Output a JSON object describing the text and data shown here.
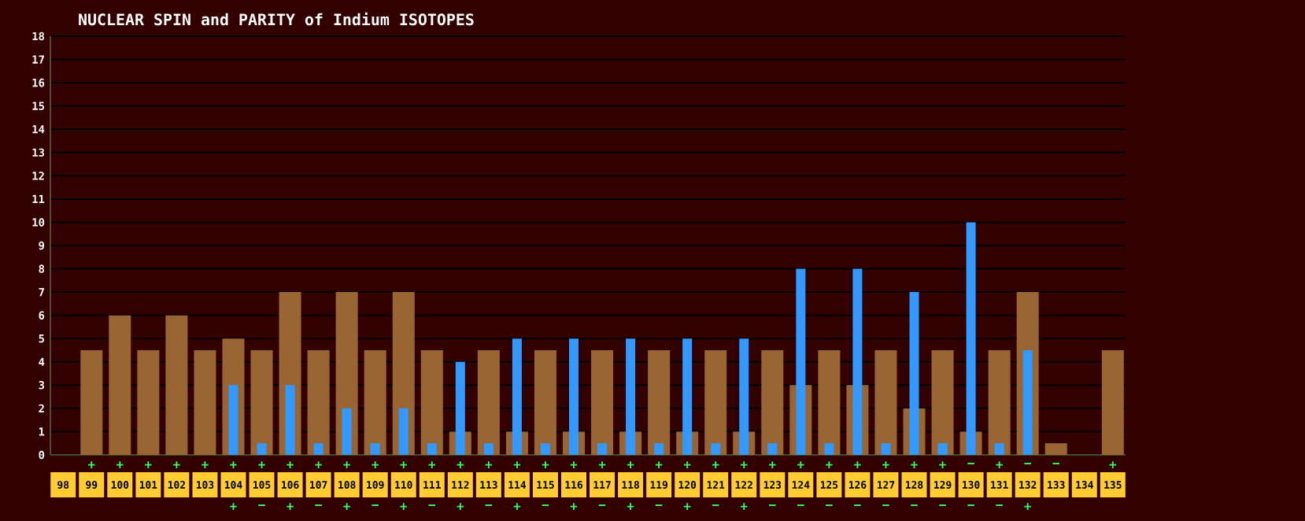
{
  "chart_data": {
    "type": "bar",
    "title": "NUCLEAR SPIN and PARITY of Indium ISOTOPES",
    "categories": [
      "98",
      "99",
      "100",
      "101",
      "102",
      "103",
      "104",
      "105",
      "106",
      "107",
      "108",
      "109",
      "110",
      "111",
      "112",
      "113",
      "114",
      "115",
      "116",
      "117",
      "118",
      "119",
      "120",
      "121",
      "122",
      "123",
      "124",
      "125",
      "126",
      "127",
      "128",
      "129",
      "130",
      "131",
      "132",
      "133",
      "134",
      "135"
    ],
    "series": [
      {
        "color": "#996633",
        "values": [
          null,
          4.5,
          6,
          4.5,
          6,
          4.5,
          5,
          4.5,
          7,
          4.5,
          7,
          4.5,
          7,
          4.5,
          1,
          4.5,
          1,
          4.5,
          1,
          4.5,
          1,
          4.5,
          1,
          4.5,
          1,
          4.5,
          3,
          4.5,
          3,
          4.5,
          2,
          4.5,
          1,
          4.5,
          7,
          0.5,
          null,
          4.5
        ],
        "value_labels": [
          null,
          "+",
          "+",
          "+",
          "+",
          "+",
          "+",
          "+",
          "+",
          "+",
          "+",
          "+",
          "+",
          "+",
          "+",
          "+",
          "+",
          "+",
          "+",
          "+",
          "+",
          "+",
          "+",
          "+",
          "+",
          "+",
          "+",
          "+",
          "+",
          "+",
          "+",
          "+",
          "−",
          "+",
          "−",
          "−",
          null,
          "+"
        ]
      },
      {
        "color": "#3399ff",
        "values": [
          null,
          null,
          null,
          null,
          null,
          null,
          3,
          0.5,
          3,
          0.5,
          2,
          0.5,
          2,
          0.5,
          4,
          0.5,
          5,
          0.5,
          5,
          0.5,
          5,
          0.5,
          5,
          0.5,
          5,
          0.5,
          8,
          0.5,
          8,
          0.5,
          7,
          0.5,
          10,
          0.5,
          4.5,
          null,
          null,
          null
        ],
        "value_labels": [
          null,
          null,
          null,
          null,
          null,
          null,
          "+",
          "−",
          "+",
          "−",
          "+",
          "−",
          "+",
          "−",
          "+",
          "−",
          "+",
          "−",
          "+",
          "−",
          "+",
          "−",
          "+",
          "−",
          "+",
          "−",
          "−",
          "−",
          "−",
          "−",
          "−",
          "−",
          "−",
          "−",
          "+",
          null,
          null,
          null
        ]
      }
    ],
    "ylim": [
      0,
      18
    ],
    "yticks": [
      0,
      1,
      2,
      3,
      4,
      5,
      6,
      7,
      8,
      9,
      10,
      11,
      12,
      13,
      14,
      15,
      16,
      17,
      18
    ],
    "grid": "y"
  }
}
